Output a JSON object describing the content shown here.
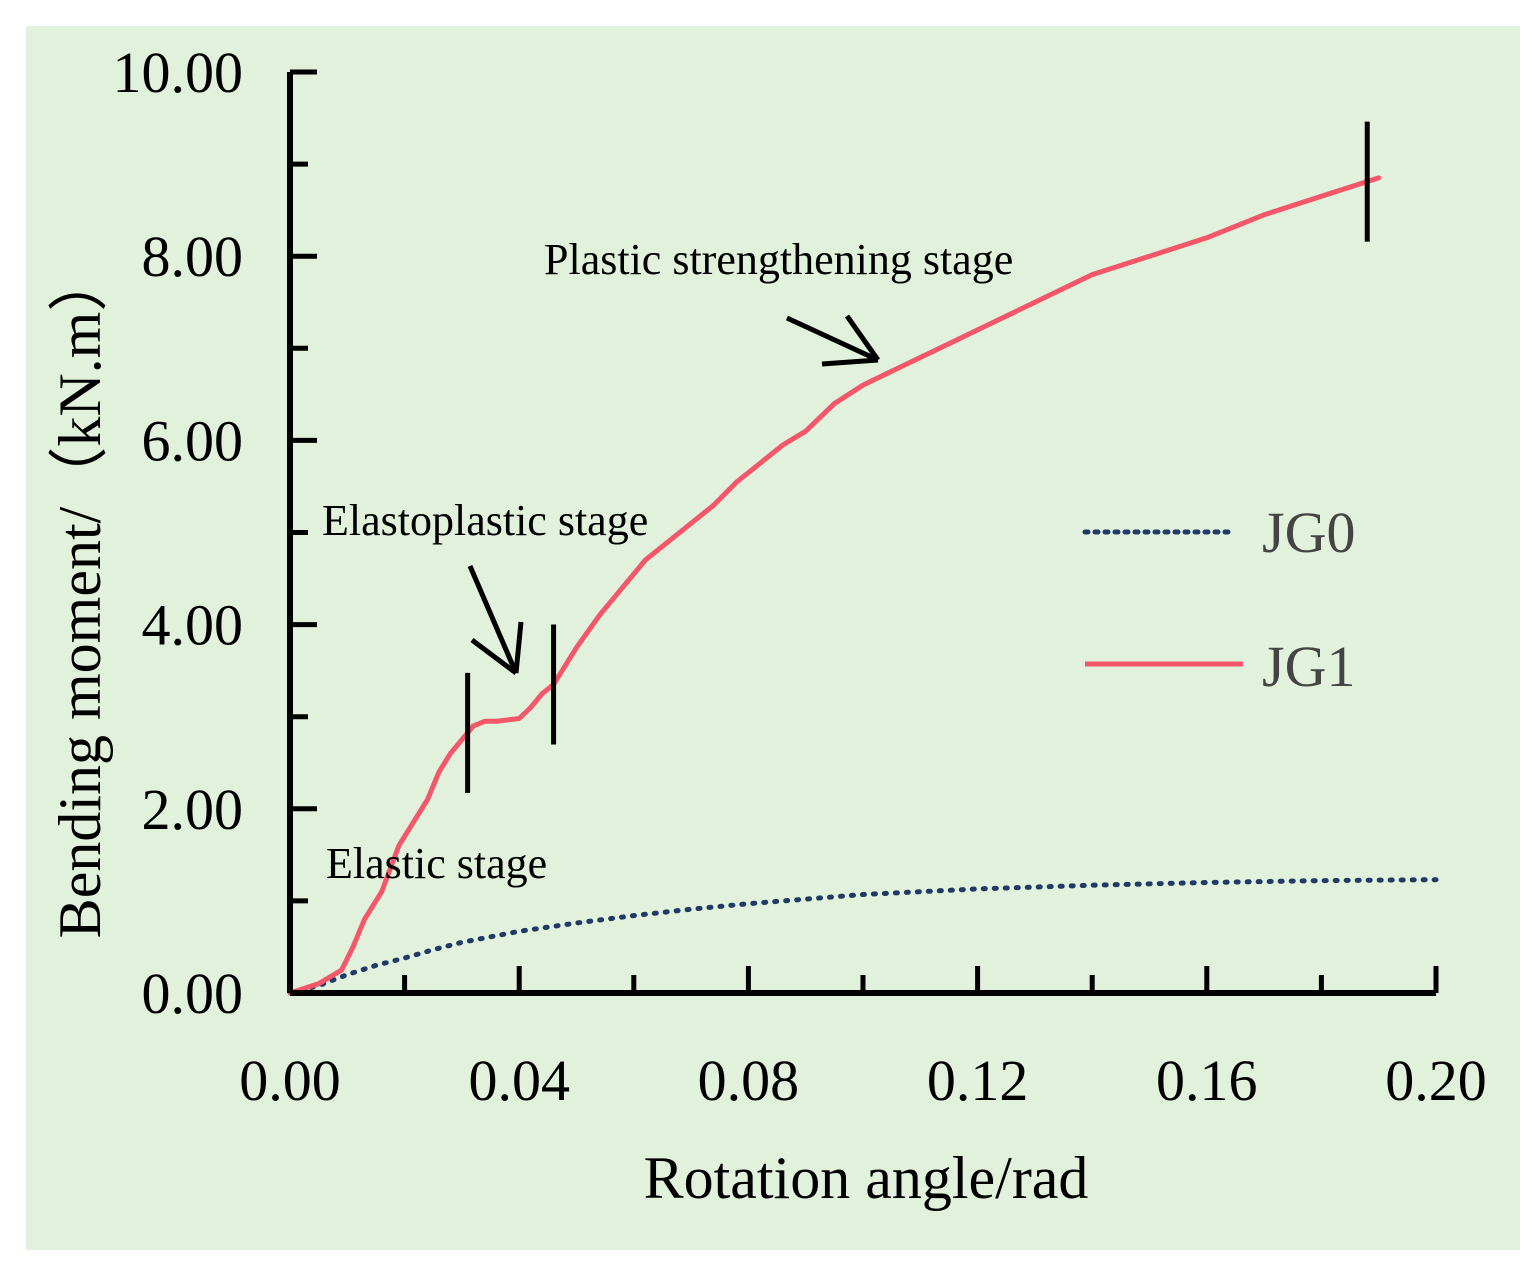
{
  "chart_data": {
    "type": "line",
    "title": "",
    "xlabel": "Rotation angle/rad",
    "ylabel": "Bending moment/（kN.m）",
    "xlim": [
      0,
      0.2
    ],
    "ylim": [
      0,
      10
    ],
    "x_ticks": [
      "0.00",
      "0.04",
      "0.08",
      "0.12",
      "0.16",
      "0.20"
    ],
    "y_ticks": [
      "0.00",
      "2.00",
      "4.00",
      "6.00",
      "8.00",
      "10.00"
    ],
    "grid": false,
    "legend_position": "right-middle",
    "colors": {
      "background": "#e1f1dc",
      "jg0": "#1f3a66",
      "jg1": "#f4566a"
    },
    "series": [
      {
        "name": "JG0",
        "style": "dotted",
        "x": [
          0,
          0.005,
          0.01,
          0.015,
          0.02,
          0.025,
          0.03,
          0.035,
          0.04,
          0.05,
          0.06,
          0.07,
          0.08,
          0.09,
          0.1,
          0.11,
          0.12,
          0.13,
          0.14,
          0.16,
          0.18,
          0.2
        ],
        "y": [
          0,
          0.08,
          0.2,
          0.3,
          0.38,
          0.47,
          0.55,
          0.61,
          0.67,
          0.76,
          0.84,
          0.91,
          0.97,
          1.02,
          1.07,
          1.1,
          1.13,
          1.15,
          1.17,
          1.2,
          1.22,
          1.23
        ]
      },
      {
        "name": "JG1",
        "style": "solid",
        "x": [
          0,
          0.005,
          0.009,
          0.011,
          0.013,
          0.016,
          0.019,
          0.021,
          0.024,
          0.026,
          0.028,
          0.03,
          0.032,
          0.034,
          0.036,
          0.04,
          0.042,
          0.044,
          0.046,
          0.048,
          0.05,
          0.054,
          0.058,
          0.062,
          0.066,
          0.07,
          0.074,
          0.078,
          0.082,
          0.086,
          0.09,
          0.095,
          0.1,
          0.105,
          0.11,
          0.115,
          0.12,
          0.13,
          0.14,
          0.15,
          0.16,
          0.17,
          0.18,
          0.19
        ],
        "y": [
          0,
          0.1,
          0.25,
          0.5,
          0.8,
          1.1,
          1.6,
          1.8,
          2.1,
          2.4,
          2.6,
          2.75,
          2.9,
          2.95,
          2.95,
          2.98,
          3.1,
          3.25,
          3.35,
          3.55,
          3.75,
          4.1,
          4.4,
          4.7,
          4.9,
          5.1,
          5.3,
          5.55,
          5.75,
          5.95,
          6.1,
          6.4,
          6.6,
          6.75,
          6.9,
          7.05,
          7.2,
          7.5,
          7.8,
          8.0,
          8.2,
          8.45,
          8.65,
          8.85
        ]
      }
    ],
    "annotations": [
      {
        "text": "Plastic strengthening stage"
      },
      {
        "text": "Elastoplastic stage"
      },
      {
        "text": "Elastic stage"
      }
    ],
    "stage_markers_x": [
      0.031,
      0.046,
      0.188
    ]
  }
}
